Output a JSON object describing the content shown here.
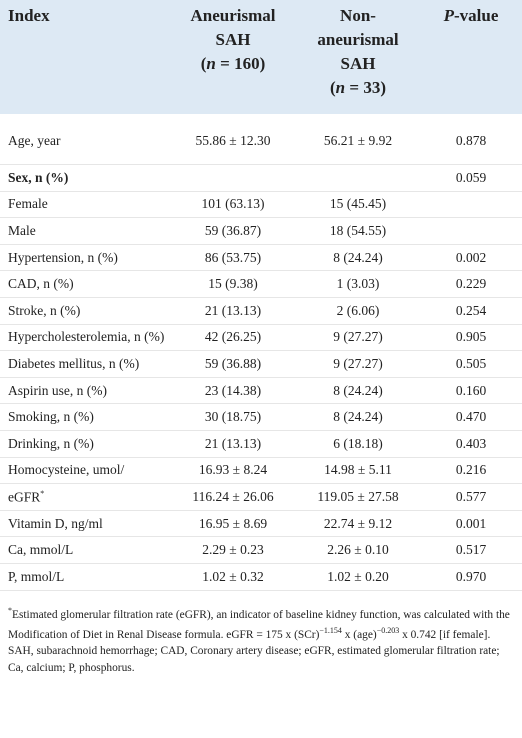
{
  "table": {
    "header": [
      {
        "title": "Index"
      },
      {
        "title": "Aneurismal SAH",
        "count_prefix": "(",
        "count_var": "n",
        "count_suffix": " = 160)"
      },
      {
        "title": "Non-aneurismal SAH",
        "count_prefix": "(",
        "count_var": "n",
        "count_suffix": " = 33)"
      },
      {
        "title_var": "P",
        "title": "-value"
      }
    ],
    "rows": [
      [
        "Age, year",
        "55.86 ± 12.30",
        "56.21 ± 9.92",
        "0.878"
      ],
      [
        "Sex, n (%)",
        "",
        "",
        "0.059"
      ],
      [
        "Female",
        "101 (63.13)",
        "15 (45.45)",
        ""
      ],
      [
        "Male",
        "59 (36.87)",
        "18 (54.55)",
        ""
      ],
      [
        "Hypertension, n (%)",
        "86 (53.75)",
        "8 (24.24)",
        "0.002"
      ],
      [
        "CAD, n (%)",
        "15 (9.38)",
        "1 (3.03)",
        "0.229"
      ],
      [
        "Stroke, n (%)",
        "21 (13.13)",
        "2 (6.06)",
        "0.254"
      ],
      [
        "Hypercholesterolemia, n (%)",
        "42 (26.25)",
        "9 (27.27)",
        "0.905"
      ],
      [
        "Diabetes mellitus, n (%)",
        "59 (36.88)",
        "9 (27.27)",
        "0.505"
      ],
      [
        "Aspirin use, n (%)",
        "23 (14.38)",
        "8 (24.24)",
        "0.160"
      ],
      [
        "Smoking, n (%)",
        "30 (18.75)",
        "8 (24.24)",
        "0.470"
      ],
      [
        "Drinking, n (%)",
        "21 (13.13)",
        "6 (18.18)",
        "0.403"
      ],
      [
        "Homocysteine, umol/",
        "16.93 ± 8.24",
        "14.98 ± 5.11",
        "0.216"
      ],
      [
        "eGFR",
        "116.24 ± 26.06",
        "119.05 ± 27.58",
        "0.577"
      ],
      [
        "Vitamin D, ng/ml",
        "16.95 ± 8.69",
        "22.74 ± 9.12",
        "0.001"
      ],
      [
        "Ca, mmol/L",
        "2.29 ± 0.23",
        "2.26 ± 0.10",
        "0.517"
      ],
      [
        "P, mmol/L",
        "1.02 ± 0.32",
        "1.02 ± 0.20",
        "0.970"
      ]
    ],
    "egfr_marker": "*",
    "footnote": {
      "marker": "*",
      "text1": "Estimated glomerular filtration rate (eGFR), an indicator of baseline kidney function, was calculated with the Modification of Diet in Renal Disease formula. eGFR = 175 x (SCr)",
      "sup1": "−1.154",
      "text2": " x (age)",
      "sup2": "−0.203",
      "text3": " x 0.742 [if female]. SAH, subarachnoid hemorrhage; CAD, Coronary artery disease; eGFR, estimated glomerular filtration rate; Ca, calcium; P, phosphorus."
    }
  }
}
